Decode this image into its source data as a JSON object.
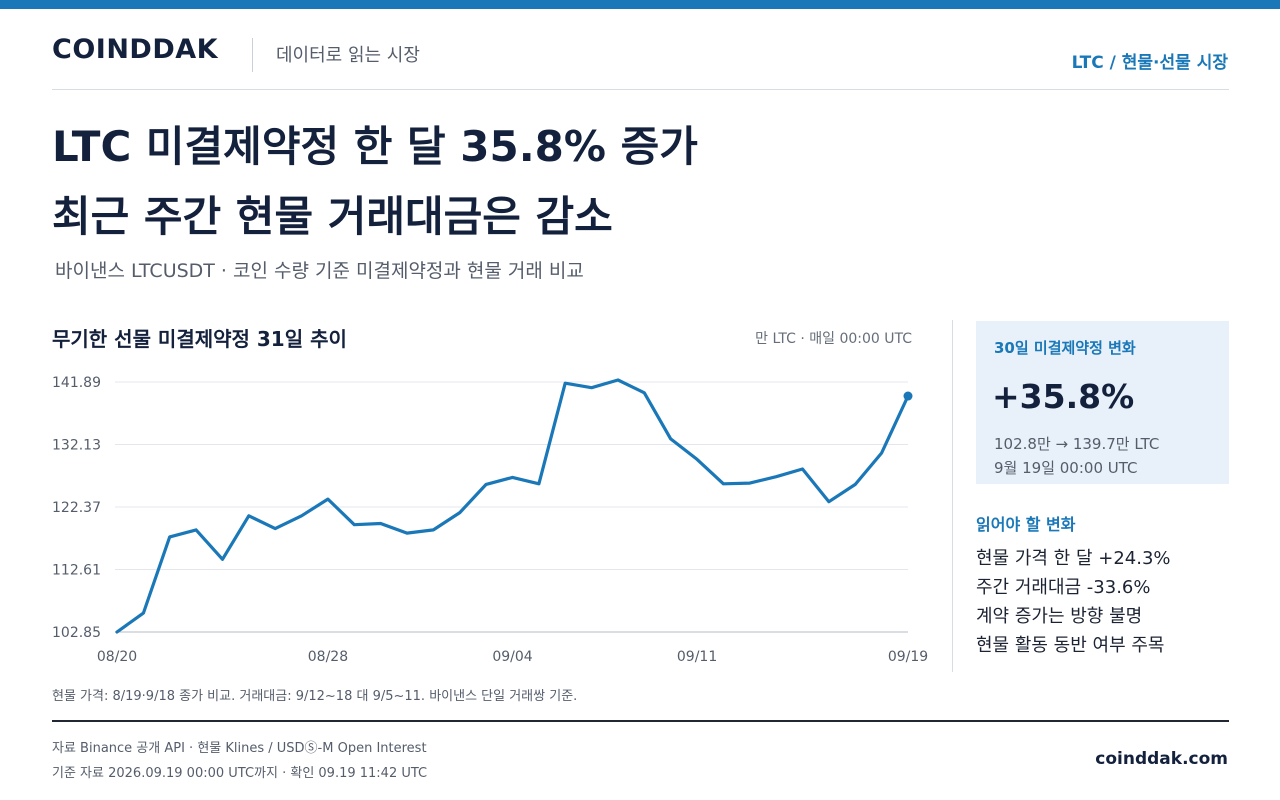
{
  "header": {
    "brand": "COINDDAK",
    "tagline": "데이터로 읽는 시장",
    "section": "LTC / 현물·선물 시장"
  },
  "headline": {
    "line1": "LTC 미결제약정 한 달 35.8% 증가",
    "line2": "최근 주간 현물 거래대금은 감소"
  },
  "subtitle": "바이낸스 LTCUSDT · 코인 수량 기준 미결제약정과 현물 거래 비교",
  "chart": {
    "title": "무기한 선물 미결제약정 31일 추이",
    "unit": "만 LTC · 매일 00:00 UTC"
  },
  "chart_data": {
    "type": "line",
    "title": "무기한 선물 미결제약정 31일 추이",
    "unit_label": "만 LTC · 매일 00:00 UTC",
    "x": [
      "08/20",
      "08/21",
      "08/22",
      "08/23",
      "08/24",
      "08/25",
      "08/26",
      "08/27",
      "08/28",
      "08/29",
      "08/30",
      "08/31",
      "09/01",
      "09/02",
      "09/03",
      "09/04",
      "09/05",
      "09/06",
      "09/07",
      "09/08",
      "09/09",
      "09/10",
      "09/11",
      "09/12",
      "09/13",
      "09/14",
      "09/15",
      "09/16",
      "09/17",
      "09/18",
      "09/19"
    ],
    "x_tick_labels": [
      "08/20",
      "08/28",
      "09/04",
      "09/11",
      "09/19"
    ],
    "x_tick_index": [
      0,
      8,
      15,
      22,
      30
    ],
    "series": [
      {
        "values": [
          102.85,
          105.8,
          117.7,
          118.8,
          114.2,
          121.0,
          119.0,
          121.0,
          123.6,
          119.6,
          119.8,
          118.3,
          118.8,
          121.5,
          125.9,
          127.0,
          126.0,
          141.7,
          141.0,
          142.2,
          140.2,
          133.0,
          129.8,
          126.0,
          126.1,
          127.1,
          128.3,
          123.2,
          125.9,
          130.8,
          139.7
        ],
        "color": "#1a78b8"
      }
    ],
    "y_ticks": [
      102.85,
      112.61,
      122.37,
      132.13,
      141.89
    ],
    "y_tick_labels": [
      "102.85",
      "112.61",
      "122.37",
      "132.13",
      "141.89"
    ],
    "ylim": [
      102.85,
      141.89
    ],
    "grid": true,
    "legend": "none"
  },
  "stat": {
    "label": "30일 미결제약정 변화",
    "value": "+35.8%",
    "detail": "102.8만 → 139.7만 LTC",
    "date": "9월 19일 00:00 UTC"
  },
  "notes": {
    "title": "읽어야 할 변화",
    "items": [
      "현물 가격 한 달 +24.3%",
      "주간 거래대금 -33.6%",
      "계약 증가는 방향 불명",
      "현물 활동 동반 여부 주목"
    ]
  },
  "footnote": "현물 가격: 8/19·9/18 종가 비교. 거래대금: 9/12~18 대 9/5~11. 바이낸스 단일 거래쌍 기준.",
  "footer": {
    "source": "자료  Binance 공개 API · 현물 Klines / USDⓈ-M Open Interest",
    "basis": "기준  자료 2026.09.19 00:00 UTC까지 · 확인 09.19 11:42 UTC",
    "site": "coinddak.com"
  },
  "colors": {
    "accent": "#1a78b8",
    "ink": "#14213d",
    "panel": "#e8f1f9"
  }
}
